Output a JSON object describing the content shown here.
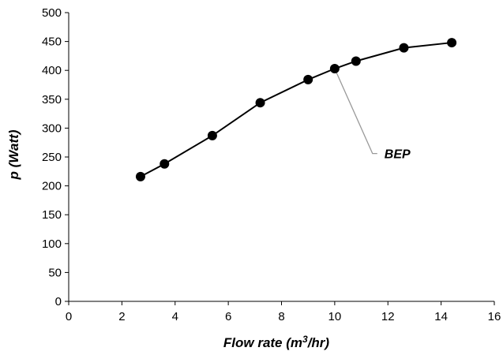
{
  "chart_data": {
    "type": "line",
    "x": [
      2.7,
      3.6,
      5.4,
      7.2,
      9.0,
      10.0,
      10.8,
      12.6,
      14.4
    ],
    "series": [
      {
        "values": [
          216,
          238,
          287,
          344,
          384,
          403,
          416,
          439,
          448
        ],
        "color": "#000000",
        "marker": "circle"
      }
    ],
    "xlabel_parts": [
      "Flow rate (m",
      "3",
      "/hr)"
    ],
    "ylabel": "p (Watt)",
    "xlim": [
      0,
      16
    ],
    "ylim": [
      0,
      500
    ],
    "xticks": [
      "0",
      "2",
      "4",
      "6",
      "8",
      "10",
      "12",
      "14",
      "16"
    ],
    "yticks": [
      "0",
      "50",
      "100",
      "150",
      "200",
      "250",
      "300",
      "350",
      "400",
      "450",
      "500"
    ],
    "grid": false,
    "legend": "none",
    "annotation": {
      "text": "BEP",
      "point": [
        10.0,
        403
      ],
      "label_at": [
        11.6,
        256
      ],
      "color": "#999999"
    }
  }
}
